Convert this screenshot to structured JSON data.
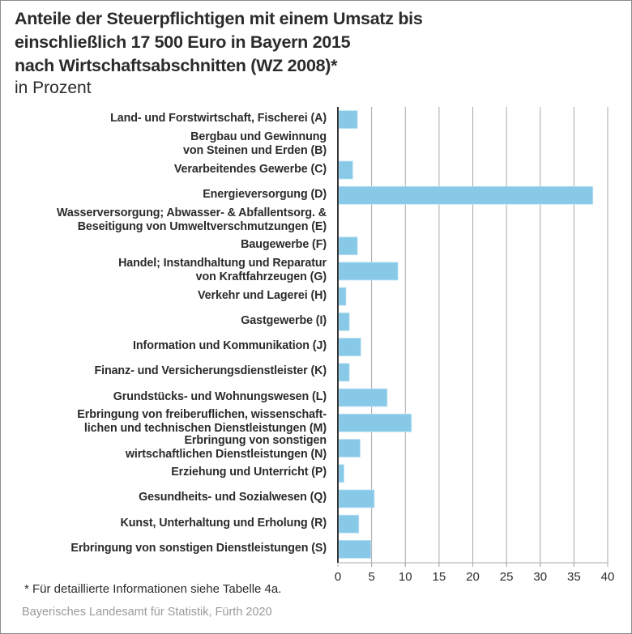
{
  "header": {
    "title_lines": [
      "Anteile der Steuerpflichtigen mit einem Umsatz bis",
      "einschließlich 17 500 Euro in Bayern 2015",
      "nach Wirtschaftsabschnitten (WZ 2008)*"
    ],
    "subtitle": "in Prozent"
  },
  "footer": {
    "footnote": "* Für detaillierte Informationen siehe Tabelle 4a.",
    "source": "Bayerisches Landesamt für Statistik, Fürth 2020"
  },
  "colors": {
    "bar": "#88c9e8",
    "axis": "#333333",
    "grid": "#aaaaaa"
  },
  "chart_data": {
    "type": "bar",
    "orientation": "horizontal",
    "title": "Anteile der Steuerpflichtigen mit einem Umsatz bis einschließlich 17 500 Euro in Bayern 2015 nach Wirtschaftsabschnitten (WZ 2008)*",
    "subtitle": "in Prozent",
    "xlabel": "",
    "ylabel": "",
    "xlim": [
      0,
      40
    ],
    "x_ticks": [
      0,
      5,
      10,
      15,
      20,
      25,
      30,
      35,
      40
    ],
    "grid": true,
    "categories": [
      [
        "Land- und Forstwirtschaft, Fischerei (A)"
      ],
      [
        "Bergbau und Gewinnung",
        "von Steinen und Erden (B)"
      ],
      [
        "Verarbeitendes Gewerbe (C)"
      ],
      [
        "Energieversorgung (D)"
      ],
      [
        "Wasserversorgung; Abwasser- & Abfallentsorg. &",
        "Beseitigung von Umweltverschmutzungen (E)"
      ],
      [
        "Baugewerbe (F)"
      ],
      [
        "Handel; Instandhaltung und Reparatur",
        "von Kraftfahrzeugen (G)"
      ],
      [
        "Verkehr und Lagerei (H)"
      ],
      [
        "Gastgewerbe (I)"
      ],
      [
        "Information und Kommunikation (J)"
      ],
      [
        "Finanz- und Versicherungsdienstleister (K)"
      ],
      [
        "Grundstücks- und Wohnungswesen (L)"
      ],
      [
        "Erbringung von freiberuflichen, wissenschaft-",
        "lichen und technischen Dienstleistungen (M)"
      ],
      [
        "Erbringung von sonstigen",
        "wirtschaftlichen Dienstleistungen (N)"
      ],
      [
        "Erziehung und Unterricht (P)"
      ],
      [
        "Gesundheits- und Sozialwesen (Q)"
      ],
      [
        "Kunst, Unterhaltung und Erholung (R)"
      ],
      [
        "Erbringung von sonstigen Dienstleistungen (S)"
      ]
    ],
    "values": [
      2.9,
      0,
      2.2,
      37.8,
      0,
      2.9,
      8.9,
      1.2,
      1.7,
      3.4,
      1.7,
      7.3,
      10.9,
      3.3,
      0.9,
      5.4,
      3.1,
      4.9
    ]
  }
}
